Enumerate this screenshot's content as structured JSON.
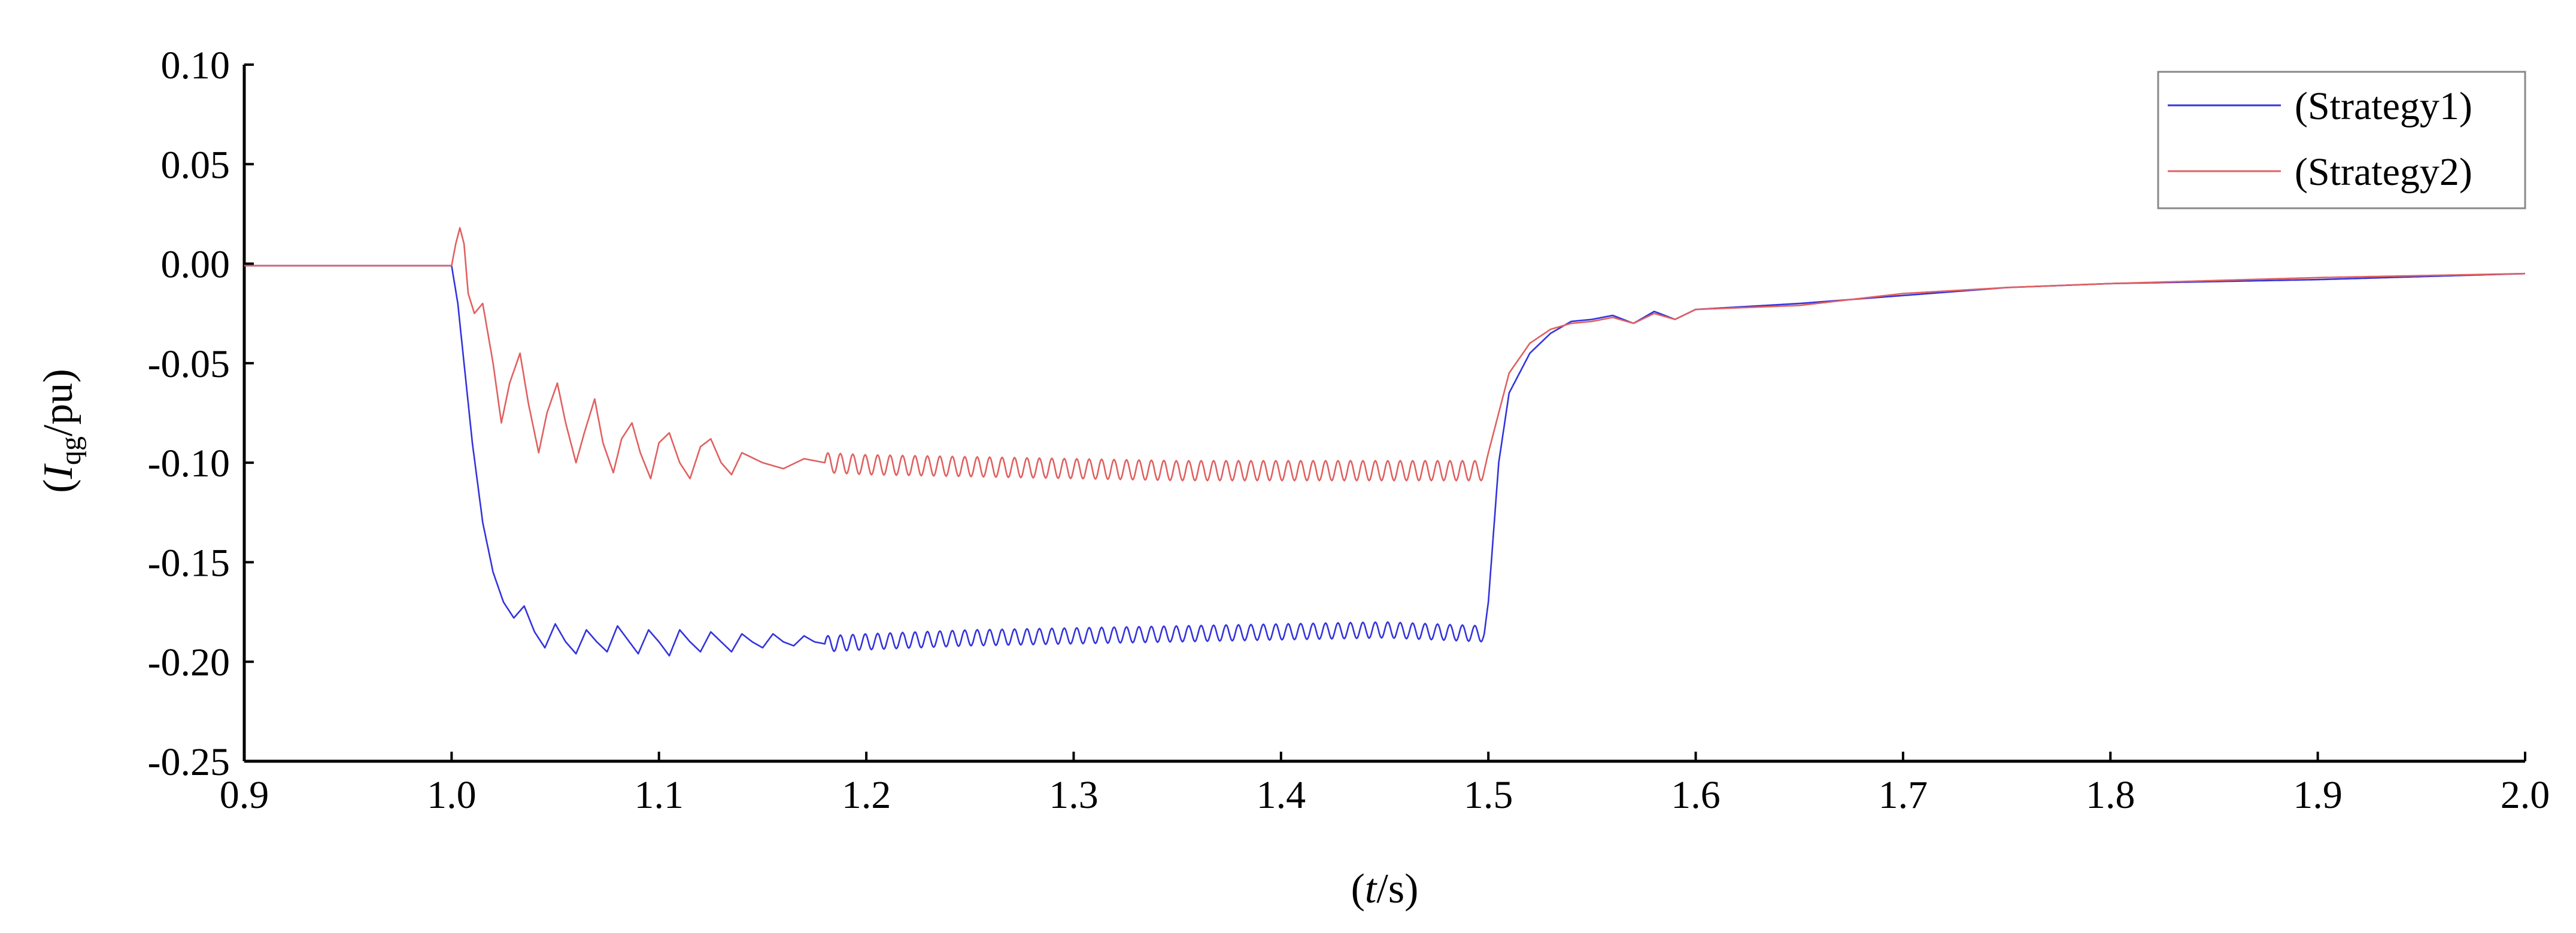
{
  "chart_data": {
    "type": "line",
    "title": "",
    "xlabel": {
      "pre": "(",
      "italic": "t",
      "post": "/s)"
    },
    "ylabel": {
      "pre": "(",
      "italic": "I",
      "sub": "qg",
      "post": "/pu)"
    },
    "xlim": [
      0.9,
      2.0
    ],
    "ylim": [
      -0.25,
      0.1
    ],
    "xticks": [
      0.9,
      1.0,
      1.1,
      1.2,
      1.3,
      1.4,
      1.5,
      1.6,
      1.7,
      1.8,
      1.9,
      2.0
    ],
    "xtick_labels": [
      "0.9",
      "1.0",
      "1.1",
      "1.2",
      "1.3",
      "1.4",
      "1.5",
      "1.6",
      "1.7",
      "1.8",
      "1.9",
      "2.0"
    ],
    "yticks": [
      0.1,
      0.05,
      0.0,
      -0.05,
      -0.1,
      -0.15,
      -0.2,
      -0.25
    ],
    "ytick_labels": [
      "0.10",
      "0.05",
      "0.00",
      "-0.05",
      "-0.10",
      "-0.15",
      "-0.20",
      "-0.25"
    ],
    "grid": false,
    "legend": {
      "position": "top-right"
    },
    "series": [
      {
        "name": "(Strategy1)",
        "color": "#3333dd",
        "x": [
          0.9,
          0.95,
          1.0,
          1.003,
          1.006,
          1.01,
          1.015,
          1.02,
          1.025,
          1.03,
          1.035,
          1.04,
          1.045,
          1.05,
          1.055,
          1.06,
          1.065,
          1.07,
          1.075,
          1.08,
          1.085,
          1.09,
          1.095,
          1.1,
          1.105,
          1.11,
          1.115,
          1.12,
          1.125,
          1.13,
          1.135,
          1.14,
          1.145,
          1.15,
          1.155,
          1.16,
          1.165,
          1.17,
          1.175,
          1.18,
          1.2,
          1.25,
          1.3,
          1.35,
          1.4,
          1.45,
          1.498,
          1.5,
          1.505,
          1.51,
          1.52,
          1.53,
          1.54,
          1.55,
          1.56,
          1.57,
          1.58,
          1.59,
          1.6,
          1.65,
          1.7,
          1.75,
          1.8,
          1.9,
          2.0
        ],
        "y": [
          -0.001,
          -0.001,
          -0.001,
          -0.02,
          -0.05,
          -0.09,
          -0.13,
          -0.155,
          -0.17,
          -0.178,
          -0.172,
          -0.185,
          -0.193,
          -0.181,
          -0.19,
          -0.196,
          -0.184,
          -0.19,
          -0.195,
          -0.182,
          -0.189,
          -0.196,
          -0.184,
          -0.19,
          -0.197,
          -0.184,
          -0.19,
          -0.195,
          -0.185,
          -0.19,
          -0.195,
          -0.186,
          -0.19,
          -0.193,
          -0.186,
          -0.19,
          -0.192,
          -0.187,
          -0.19,
          -0.191,
          -0.19,
          -0.188,
          -0.187,
          -0.186,
          -0.185,
          -0.184,
          -0.186,
          -0.17,
          -0.1,
          -0.065,
          -0.045,
          -0.035,
          -0.029,
          -0.028,
          -0.026,
          -0.03,
          -0.024,
          -0.028,
          -0.023,
          -0.02,
          -0.016,
          -0.012,
          -0.01,
          -0.008,
          -0.005
        ],
        "oscillation": {
          "x_range": [
            1.18,
            1.498
          ],
          "amplitude": 0.004,
          "period": 0.006
        }
      },
      {
        "name": "(Strategy2)",
        "color": "#e06060",
        "x": [
          0.9,
          0.95,
          1.0,
          1.002,
          1.004,
          1.006,
          1.008,
          1.011,
          1.015,
          1.02,
          1.024,
          1.028,
          1.033,
          1.037,
          1.042,
          1.046,
          1.051,
          1.055,
          1.06,
          1.064,
          1.069,
          1.073,
          1.078,
          1.082,
          1.087,
          1.091,
          1.096,
          1.1,
          1.105,
          1.11,
          1.115,
          1.12,
          1.125,
          1.13,
          1.135,
          1.14,
          1.15,
          1.16,
          1.17,
          1.18,
          1.2,
          1.25,
          1.3,
          1.35,
          1.4,
          1.45,
          1.498,
          1.5,
          1.505,
          1.51,
          1.52,
          1.53,
          1.54,
          1.55,
          1.56,
          1.57,
          1.58,
          1.59,
          1.6,
          1.65,
          1.7,
          1.75,
          1.8,
          1.9,
          2.0
        ],
        "y": [
          -0.001,
          -0.001,
          -0.001,
          0.01,
          0.018,
          0.01,
          -0.015,
          -0.025,
          -0.02,
          -0.05,
          -0.08,
          -0.06,
          -0.045,
          -0.07,
          -0.095,
          -0.075,
          -0.06,
          -0.08,
          -0.1,
          -0.085,
          -0.068,
          -0.09,
          -0.105,
          -0.088,
          -0.08,
          -0.095,
          -0.108,
          -0.09,
          -0.085,
          -0.1,
          -0.108,
          -0.092,
          -0.088,
          -0.1,
          -0.106,
          -0.095,
          -0.1,
          -0.103,
          -0.098,
          -0.1,
          -0.101,
          -0.102,
          -0.103,
          -0.104,
          -0.104,
          -0.104,
          -0.104,
          -0.095,
          -0.075,
          -0.055,
          -0.04,
          -0.033,
          -0.03,
          -0.029,
          -0.027,
          -0.03,
          -0.025,
          -0.028,
          -0.023,
          -0.021,
          -0.015,
          -0.012,
          -0.01,
          -0.007,
          -0.005
        ],
        "oscillation": {
          "x_range": [
            1.18,
            1.498
          ],
          "amplitude": 0.005,
          "period": 0.006
        }
      }
    ]
  }
}
